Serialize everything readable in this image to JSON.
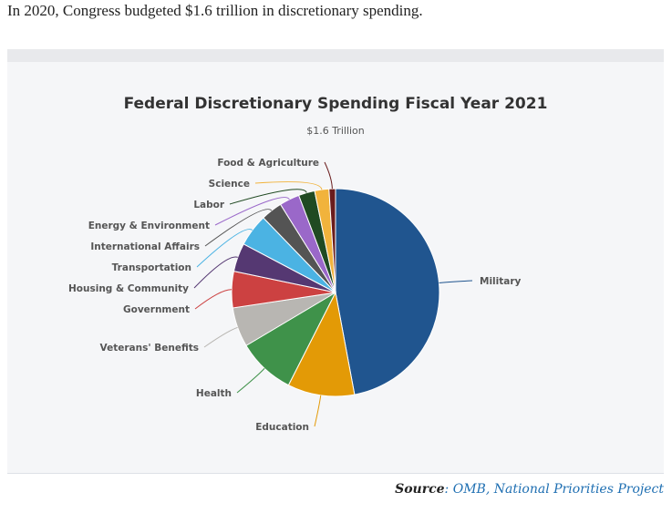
{
  "intro_text": "In 2020, Congress budgeted $1.6 trillion in discretionary spending.",
  "source": {
    "label": "Source",
    "separator": ":",
    "text": "OMB, National Priorities Project"
  },
  "chart_data": {
    "type": "pie",
    "title": "Federal Discretionary Spending Fiscal Year 2021",
    "subtitle": "$1.6 Trillion",
    "unit": "percent (estimated)",
    "start_angle_deg": 0,
    "direction": "clockwise",
    "slices": [
      {
        "label": "Military",
        "value": 46.6,
        "color": "#20558f"
      },
      {
        "label": "Education",
        "value": 10.3,
        "color": "#e39a06"
      },
      {
        "label": "Health",
        "value": 8.9,
        "color": "#3f924a"
      },
      {
        "label": "Veterans' Benefits",
        "value": 6.1,
        "color": "#b8b6b2"
      },
      {
        "label": "Government",
        "value": 5.6,
        "color": "#cc4141"
      },
      {
        "label": "Housing & Community",
        "value": 4.4,
        "color": "#553872"
      },
      {
        "label": "Transportation",
        "value": 5.0,
        "color": "#4bb3e3"
      },
      {
        "label": "International Affairs",
        "value": 3.3,
        "color": "#545454"
      },
      {
        "label": "Energy & Environment",
        "value": 3.1,
        "color": "#9a68c9"
      },
      {
        "label": "Labor",
        "value": 2.5,
        "color": "#204a22"
      },
      {
        "label": "Science",
        "value": 2.2,
        "color": "#f1b33c"
      },
      {
        "label": "Food & Agriculture",
        "value": 1.0,
        "color": "#6a1c1c"
      }
    ]
  }
}
